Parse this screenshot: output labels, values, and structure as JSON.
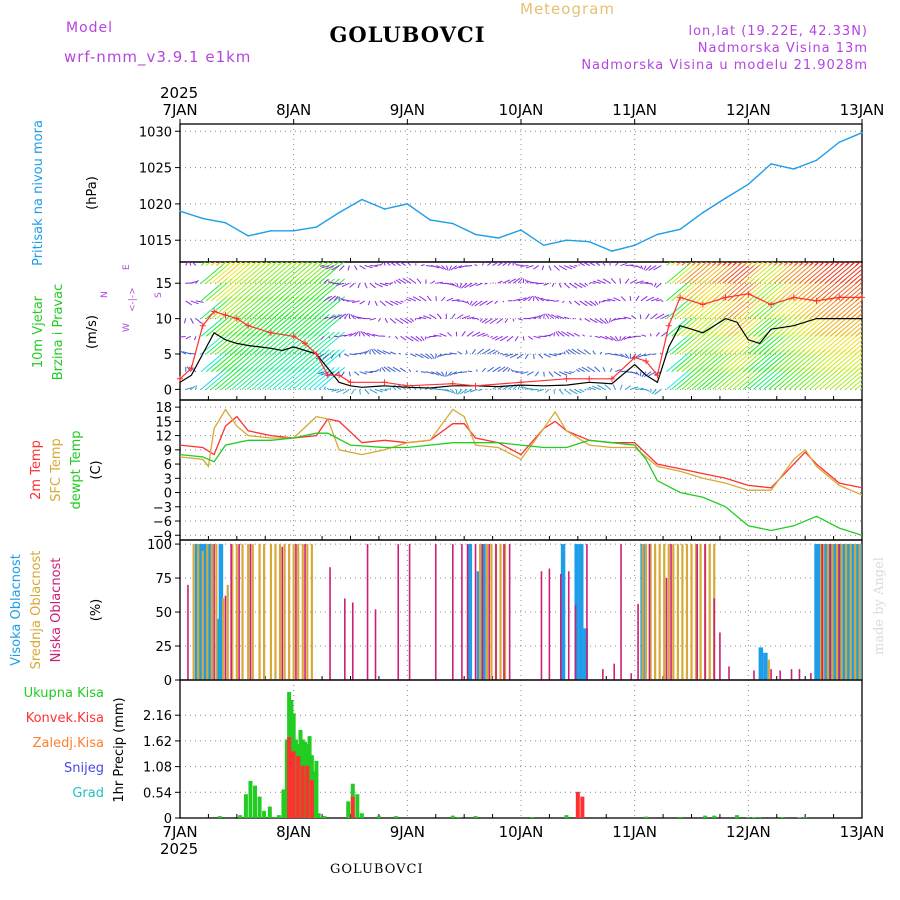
{
  "header": {
    "model_label": "Model",
    "model_name": "wrf-nmm_v3.9.1 e1km",
    "title": "GOLUBOVCI",
    "meteogram_label": "Meteogram",
    "location_coords": "lon,lat (19.22E, 42.33N)",
    "location_elevation": "Nadmorska Visina 13m",
    "model_elevation": "Nadmorska Visina u modelu 21.9028m"
  },
  "footer": {
    "bottom_title": "GOLUBOVCI",
    "made_by": "made by Angel"
  },
  "colors": {
    "pressure": "#1e9ee8",
    "wind_speed": "#000000",
    "wind_gust": "#ff3030",
    "temp_2m": "#ff3030",
    "temp_sfc": "#d8a838",
    "dewpoint": "#22cc22",
    "cloud_high": "#1e9ee8",
    "cloud_mid": "#d8a838",
    "cloud_low": "#cc1f7a",
    "precip_total": "#22cc22",
    "precip_convective": "#ff3030",
    "precip_frozen": "#ff7f2a",
    "precip_snow": "#4848e8",
    "precip_hail": "#20c0c0",
    "compass": "#b545e0"
  },
  "chart_data": [
    {
      "type": "line",
      "panel": "pressure",
      "ylabel_outer": "Pritisak na nivou mora",
      "ylabel_unit": "(hPa)",
      "x_axis_top": {
        "year": "2025",
        "ticks": [
          "7JAN",
          "8JAN",
          "9JAN",
          "10JAN",
          "11JAN",
          "12JAN",
          "13JAN"
        ]
      },
      "ylim": [
        1012,
        1031
      ],
      "yticks": [
        "1015",
        "1020",
        "1025",
        "1030"
      ],
      "grid": true,
      "series": [
        {
          "x": [
            0,
            0.2,
            0.4,
            0.6,
            0.8,
            1.0,
            1.2,
            1.4,
            1.6,
            1.8,
            2.0,
            2.2,
            2.4,
            2.6,
            2.8,
            3.0,
            3.2,
            3.4,
            3.6,
            3.8,
            4.0,
            4.2,
            4.4,
            4.6,
            4.8,
            5.0,
            5.2,
            5.4,
            5.6,
            5.8,
            6.0
          ],
          "values": [
            1019,
            1018,
            1017.4,
            1015.6,
            1016.3,
            1016.3,
            1016.8,
            1018.8,
            1020.6,
            1019.3,
            1020,
            1017.8,
            1017.3,
            1015.8,
            1015.3,
            1016.4,
            1014.3,
            1015,
            1014.8,
            1013.5,
            1014.3,
            1015.8,
            1016.5,
            1018.8,
            1020.8,
            1022.7,
            1025.5,
            1024.8,
            1026,
            1028.5,
            1029.8
          ]
        }
      ]
    },
    {
      "type": "line",
      "panel": "wind",
      "ylabel_outer": [
        "10m Vjetar",
        "Brzina i Pravac"
      ],
      "ylabel_unit": "(m/s)",
      "compass": {
        "north": "N",
        "south": "S",
        "east": "E",
        "west": "W",
        "arrow": "<-|->"
      },
      "ylim": [
        -1.5,
        18
      ],
      "yticks": [
        "0",
        "5",
        "10",
        "15"
      ],
      "grid": true,
      "series": [
        {
          "name": "speed",
          "x": [
            0,
            0.1,
            0.2,
            0.3,
            0.4,
            0.5,
            0.6,
            0.7,
            0.8,
            0.9,
            1.0,
            1.2,
            1.3,
            1.4,
            1.5,
            1.6,
            1.8,
            2.0,
            2.2,
            2.4,
            2.6,
            2.8,
            3.0,
            3.2,
            3.4,
            3.6,
            3.8,
            4.0,
            4.1,
            4.2,
            4.3,
            4.4,
            4.5,
            4.6,
            4.7,
            4.8,
            4.9,
            5.0,
            5.1,
            5.2,
            5.4,
            5.6,
            5.8,
            6.0
          ],
          "values": [
            1,
            2,
            5,
            8,
            7,
            6.5,
            6.2,
            6.0,
            5.8,
            5.5,
            6,
            5,
            3,
            1,
            0.5,
            0.3,
            0.5,
            0.3,
            0.2,
            0.5,
            0.5,
            0.4,
            0.6,
            0.5,
            0.6,
            1,
            0.8,
            3.5,
            2,
            1,
            6,
            9,
            8.5,
            8,
            9,
            10,
            9.5,
            7,
            6.5,
            8.5,
            9,
            10,
            10,
            10
          ]
        },
        {
          "name": "gust",
          "x": [
            0,
            0.1,
            0.2,
            0.3,
            0.4,
            0.5,
            0.6,
            0.8,
            1.0,
            1.1,
            1.2,
            1.3,
            1.4,
            1.5,
            1.8,
            2.0,
            2.4,
            2.6,
            3.0,
            3.4,
            3.6,
            3.8,
            4.0,
            4.1,
            4.2,
            4.3,
            4.4,
            4.6,
            4.8,
            5.0,
            5.2,
            5.4,
            5.6,
            5.8,
            6.0
          ],
          "values": [
            1.5,
            3,
            9,
            11,
            10.5,
            10,
            9,
            8,
            7.5,
            6.5,
            5,
            2,
            2,
            1,
            1,
            0.5,
            0.8,
            0.5,
            1,
            1.5,
            1.5,
            1.5,
            4.5,
            4,
            2,
            9,
            13,
            12,
            13,
            13.5,
            12,
            13,
            12.5,
            13,
            13
          ]
        }
      ]
    },
    {
      "type": "line",
      "panel": "temperature",
      "ylabel_outer": [
        "2m Temp",
        "SFC Temp",
        "dewpt Temp"
      ],
      "ylabel_unit": "(C)",
      "ylim": [
        -10,
        19.5
      ],
      "yticks": [
        "−9",
        "−6",
        "−3",
        "0",
        "3",
        "6",
        "9",
        "12",
        "15",
        "18"
      ],
      "grid": true,
      "series": [
        {
          "name": "2m Temp",
          "x": [
            0,
            0.2,
            0.3,
            0.4,
            0.5,
            0.6,
            0.8,
            1.0,
            1.2,
            1.3,
            1.4,
            1.6,
            1.8,
            2.0,
            2.2,
            2.4,
            2.5,
            2.6,
            2.8,
            3.0,
            3.2,
            3.3,
            3.4,
            3.6,
            3.8,
            4.0,
            4.2,
            4.4,
            4.6,
            4.8,
            5.0,
            5.2,
            5.4,
            5.5,
            5.6,
            5.8,
            6.0
          ],
          "values": [
            10,
            9.5,
            8,
            14,
            16,
            13,
            12,
            11.5,
            12,
            15.5,
            15,
            10.5,
            11,
            10.5,
            11,
            14.5,
            14.5,
            11.5,
            10.5,
            8,
            13.5,
            15,
            13,
            11,
            10.5,
            10.5,
            6,
            5,
            4,
            3,
            1.5,
            1,
            6,
            8.5,
            6,
            2,
            1
          ]
        },
        {
          "name": "SFC Temp",
          "x": [
            0,
            0.2,
            0.25,
            0.3,
            0.4,
            0.5,
            0.6,
            0.8,
            1.0,
            1.2,
            1.3,
            1.4,
            1.6,
            1.8,
            2.0,
            2.2,
            2.4,
            2.5,
            2.6,
            2.8,
            3.0,
            3.2,
            3.3,
            3.4,
            3.6,
            3.8,
            4.0,
            4.2,
            4.4,
            4.6,
            4.8,
            5.0,
            5.2,
            5.4,
            5.5,
            5.6,
            5.8,
            6.0
          ],
          "values": [
            7.5,
            7,
            5.5,
            13.5,
            17.5,
            14,
            12,
            11.5,
            11.5,
            16,
            15.5,
            9,
            8,
            9,
            10.5,
            11,
            17.5,
            16,
            10,
            9.5,
            7,
            13.5,
            17,
            13,
            10,
            9.5,
            9.5,
            5.5,
            4.5,
            3,
            2,
            0.5,
            0.5,
            7,
            9,
            5.5,
            1.5,
            -0.5
          ]
        },
        {
          "name": "dewpt Temp",
          "x": [
            0,
            0.2,
            0.3,
            0.4,
            0.6,
            0.8,
            1.0,
            1.2,
            1.3,
            1.5,
            1.8,
            2.0,
            2.2,
            2.4,
            2.6,
            2.8,
            3.0,
            3.2,
            3.4,
            3.6,
            3.8,
            4.0,
            4.1,
            4.2,
            4.4,
            4.6,
            4.8,
            5.0,
            5.2,
            5.4,
            5.6,
            5.8,
            6.0
          ],
          "values": [
            8,
            7.5,
            6.5,
            10,
            11,
            11,
            11.5,
            12.5,
            12.5,
            10,
            9.5,
            9.5,
            10,
            10.5,
            10.5,
            10.5,
            10,
            9.5,
            9.5,
            11,
            10.5,
            10,
            7,
            2.5,
            0,
            -1,
            -3,
            -7,
            -8,
            -7,
            -5,
            -7.5,
            -9
          ]
        }
      ]
    },
    {
      "type": "bar",
      "panel": "clouds",
      "ylabel_outer": [
        "Visoka Oblacnost",
        "Srednja Oblacnost",
        "Niska Oblacnost"
      ],
      "ylabel_unit": "(%)",
      "ylim": [
        0,
        103
      ],
      "yticks": [
        "0",
        "25",
        "50",
        "75",
        "100"
      ],
      "grid": true,
      "series": [
        {
          "name": "Visoka Oblacnost",
          "x": [
            0.15,
            0.17,
            0.19,
            0.21,
            0.23,
            0.25,
            0.27,
            0.34,
            0.36,
            2.55,
            2.63,
            2.67,
            3.37,
            3.49,
            3.53,
            3.57,
            4.07,
            5.11,
            5.15,
            5.6,
            5.62,
            5.64,
            5.66,
            5.68,
            5.7,
            5.72,
            5.74,
            5.76,
            5.78,
            5.8,
            5.82,
            5.84,
            5.86,
            5.88,
            5.9,
            5.92,
            5.94,
            5.96,
            5.98
          ],
          "values": [
            100,
            100,
            100,
            100,
            100,
            100,
            100,
            45,
            100,
            100,
            80,
            100,
            100,
            100,
            100,
            38,
            100,
            24,
            20,
            100,
            100,
            100,
            100,
            100,
            100,
            100,
            100,
            100,
            100,
            100,
            100,
            100,
            100,
            100,
            100,
            100,
            100,
            100,
            100
          ]
        },
        {
          "name": "Srednja Oblacnost",
          "x": [
            0.12,
            0.16,
            0.2,
            0.24,
            0.28,
            0.32,
            0.38,
            0.42,
            0.46,
            0.5,
            0.55,
            0.6,
            0.64,
            0.7,
            0.74,
            0.8,
            0.84,
            0.88,
            0.92,
            0.96,
            1.0,
            1.04,
            1.08,
            1.12,
            1.16,
            2.64,
            2.7,
            2.74,
            2.78,
            2.82,
            2.86,
            4.07,
            4.1,
            4.14,
            4.18,
            4.22,
            4.26,
            4.3,
            4.34,
            4.38,
            4.42,
            4.46,
            4.5,
            4.54,
            4.58,
            4.62,
            4.66,
            4.7,
            5.18,
            5.64,
            5.66,
            5.7,
            5.74,
            5.78,
            5.82,
            5.86,
            5.9,
            5.94,
            5.98
          ],
          "values": [
            100,
            100,
            95,
            100,
            100,
            100,
            60,
            70,
            100,
            100,
            100,
            100,
            100,
            100,
            100,
            100,
            100,
            100,
            100,
            100,
            100,
            100,
            100,
            100,
            100,
            100,
            100,
            100,
            100,
            100,
            100,
            100,
            100,
            100,
            100,
            100,
            100,
            100,
            100,
            100,
            100,
            100,
            100,
            100,
            100,
            100,
            100,
            100,
            15,
            100,
            100,
            100,
            100,
            100,
            100,
            100,
            100,
            100,
            100
          ]
        },
        {
          "name": "Niska Oblacnost",
          "x": [
            0.07,
            0.3,
            0.4,
            0.45,
            0.52,
            0.62,
            0.9,
            1.02,
            1.1,
            1.32,
            1.45,
            1.52,
            1.65,
            1.72,
            1.92,
            2.02,
            2.25,
            2.4,
            2.48,
            2.53,
            2.6,
            2.66,
            2.72,
            2.78,
            2.85,
            2.9,
            3.18,
            3.25,
            3.35,
            3.42,
            3.48,
            3.58,
            3.72,
            3.82,
            3.88,
            3.97,
            4.03,
            4.13,
            4.28,
            4.32,
            4.55,
            4.62,
            4.7,
            4.75,
            4.83,
            5.05,
            5.2,
            5.28,
            5.38,
            5.45,
            5.55,
            5.65,
            5.72,
            5.8
          ],
          "values": [
            70,
            100,
            62,
            100,
            100,
            100,
            98,
            100,
            100,
            83,
            60,
            57,
            100,
            52,
            100,
            100,
            100,
            100,
            100,
            100,
            100,
            100,
            100,
            100,
            100,
            100,
            80,
            82,
            78,
            80,
            55,
            100,
            8,
            12,
            100,
            5,
            56,
            100,
            75,
            100,
            100,
            100,
            60,
            35,
            10,
            7,
            8,
            7,
            8,
            8,
            5,
            100,
            100,
            100
          ]
        }
      ]
    },
    {
      "type": "bar",
      "panel": "precipitation",
      "ylabel_outer": [
        "Ukupna Kisa",
        "Konvek.Kisa",
        "Zaledj.Kisa",
        "Snijeg",
        "Grad"
      ],
      "ylabel_unit": "1hr Precip (mm)",
      "x_axis_bottom": {
        "year": "2025",
        "ticks": [
          "7JAN",
          "8JAN",
          "9JAN",
          "10JAN",
          "11JAN",
          "12JAN",
          "13JAN"
        ]
      },
      "ylim": [
        0,
        2.9
      ],
      "yticks": [
        "0",
        "0.54",
        "1.08",
        "1.62",
        "2.16"
      ],
      "grid": true,
      "series": [
        {
          "name": "Ukupna Kisa",
          "x": [
            0.35,
            0.53,
            0.58,
            0.62,
            0.66,
            0.7,
            0.74,
            0.79,
            0.83,
            0.87,
            0.91,
            0.94,
            0.96,
            0.98,
            1.0,
            1.02,
            1.04,
            1.06,
            1.08,
            1.1,
            1.12,
            1.14,
            1.16,
            1.18,
            1.2,
            1.22,
            1.24,
            1.27,
            1.48,
            1.52,
            1.56,
            1.6,
            1.75,
            1.9,
            2.4,
            2.45,
            2.6,
            3.1,
            3.4,
            3.5,
            4.1,
            4.4,
            4.62,
            4.7,
            4.9,
            5.0,
            5.05,
            5.1,
            5.3,
            5.45,
            5.5
          ],
          "values": [
            0.04,
            0.06,
            0.5,
            0.78,
            0.68,
            0.45,
            0.15,
            0.24,
            0.02,
            0.06,
            0.6,
            1.65,
            2.65,
            2.48,
            2.2,
            1.65,
            1.55,
            1.85,
            1.65,
            1.6,
            1.55,
            1.72,
            1.32,
            0.98,
            1.2,
            0.1,
            0.02,
            0.04,
            0.35,
            0.72,
            0.5,
            0.1,
            0.05,
            0.04,
            0.05,
            0.02,
            0.04,
            0.02,
            0.06,
            0.02,
            0.03,
            0.02,
            0.05,
            0.05,
            0.06,
            0.02,
            0.01,
            0.02,
            0.02,
            0.01,
            0.01
          ]
        },
        {
          "name": "Konvek.Kisa",
          "x": [
            0.96,
            0.98,
            1.0,
            1.04,
            1.08,
            1.12,
            1.16,
            1.52,
            3.5,
            3.54
          ],
          "values": [
            1.7,
            1.4,
            1.4,
            1.3,
            1.1,
            1.1,
            0.8,
            0.45,
            0.55,
            0.45
          ]
        },
        {
          "name": "Zaledj.Kisa",
          "x": [],
          "values": []
        },
        {
          "name": "Snijeg",
          "x": [],
          "values": []
        },
        {
          "name": "Grad",
          "x": [],
          "values": []
        }
      ]
    }
  ]
}
